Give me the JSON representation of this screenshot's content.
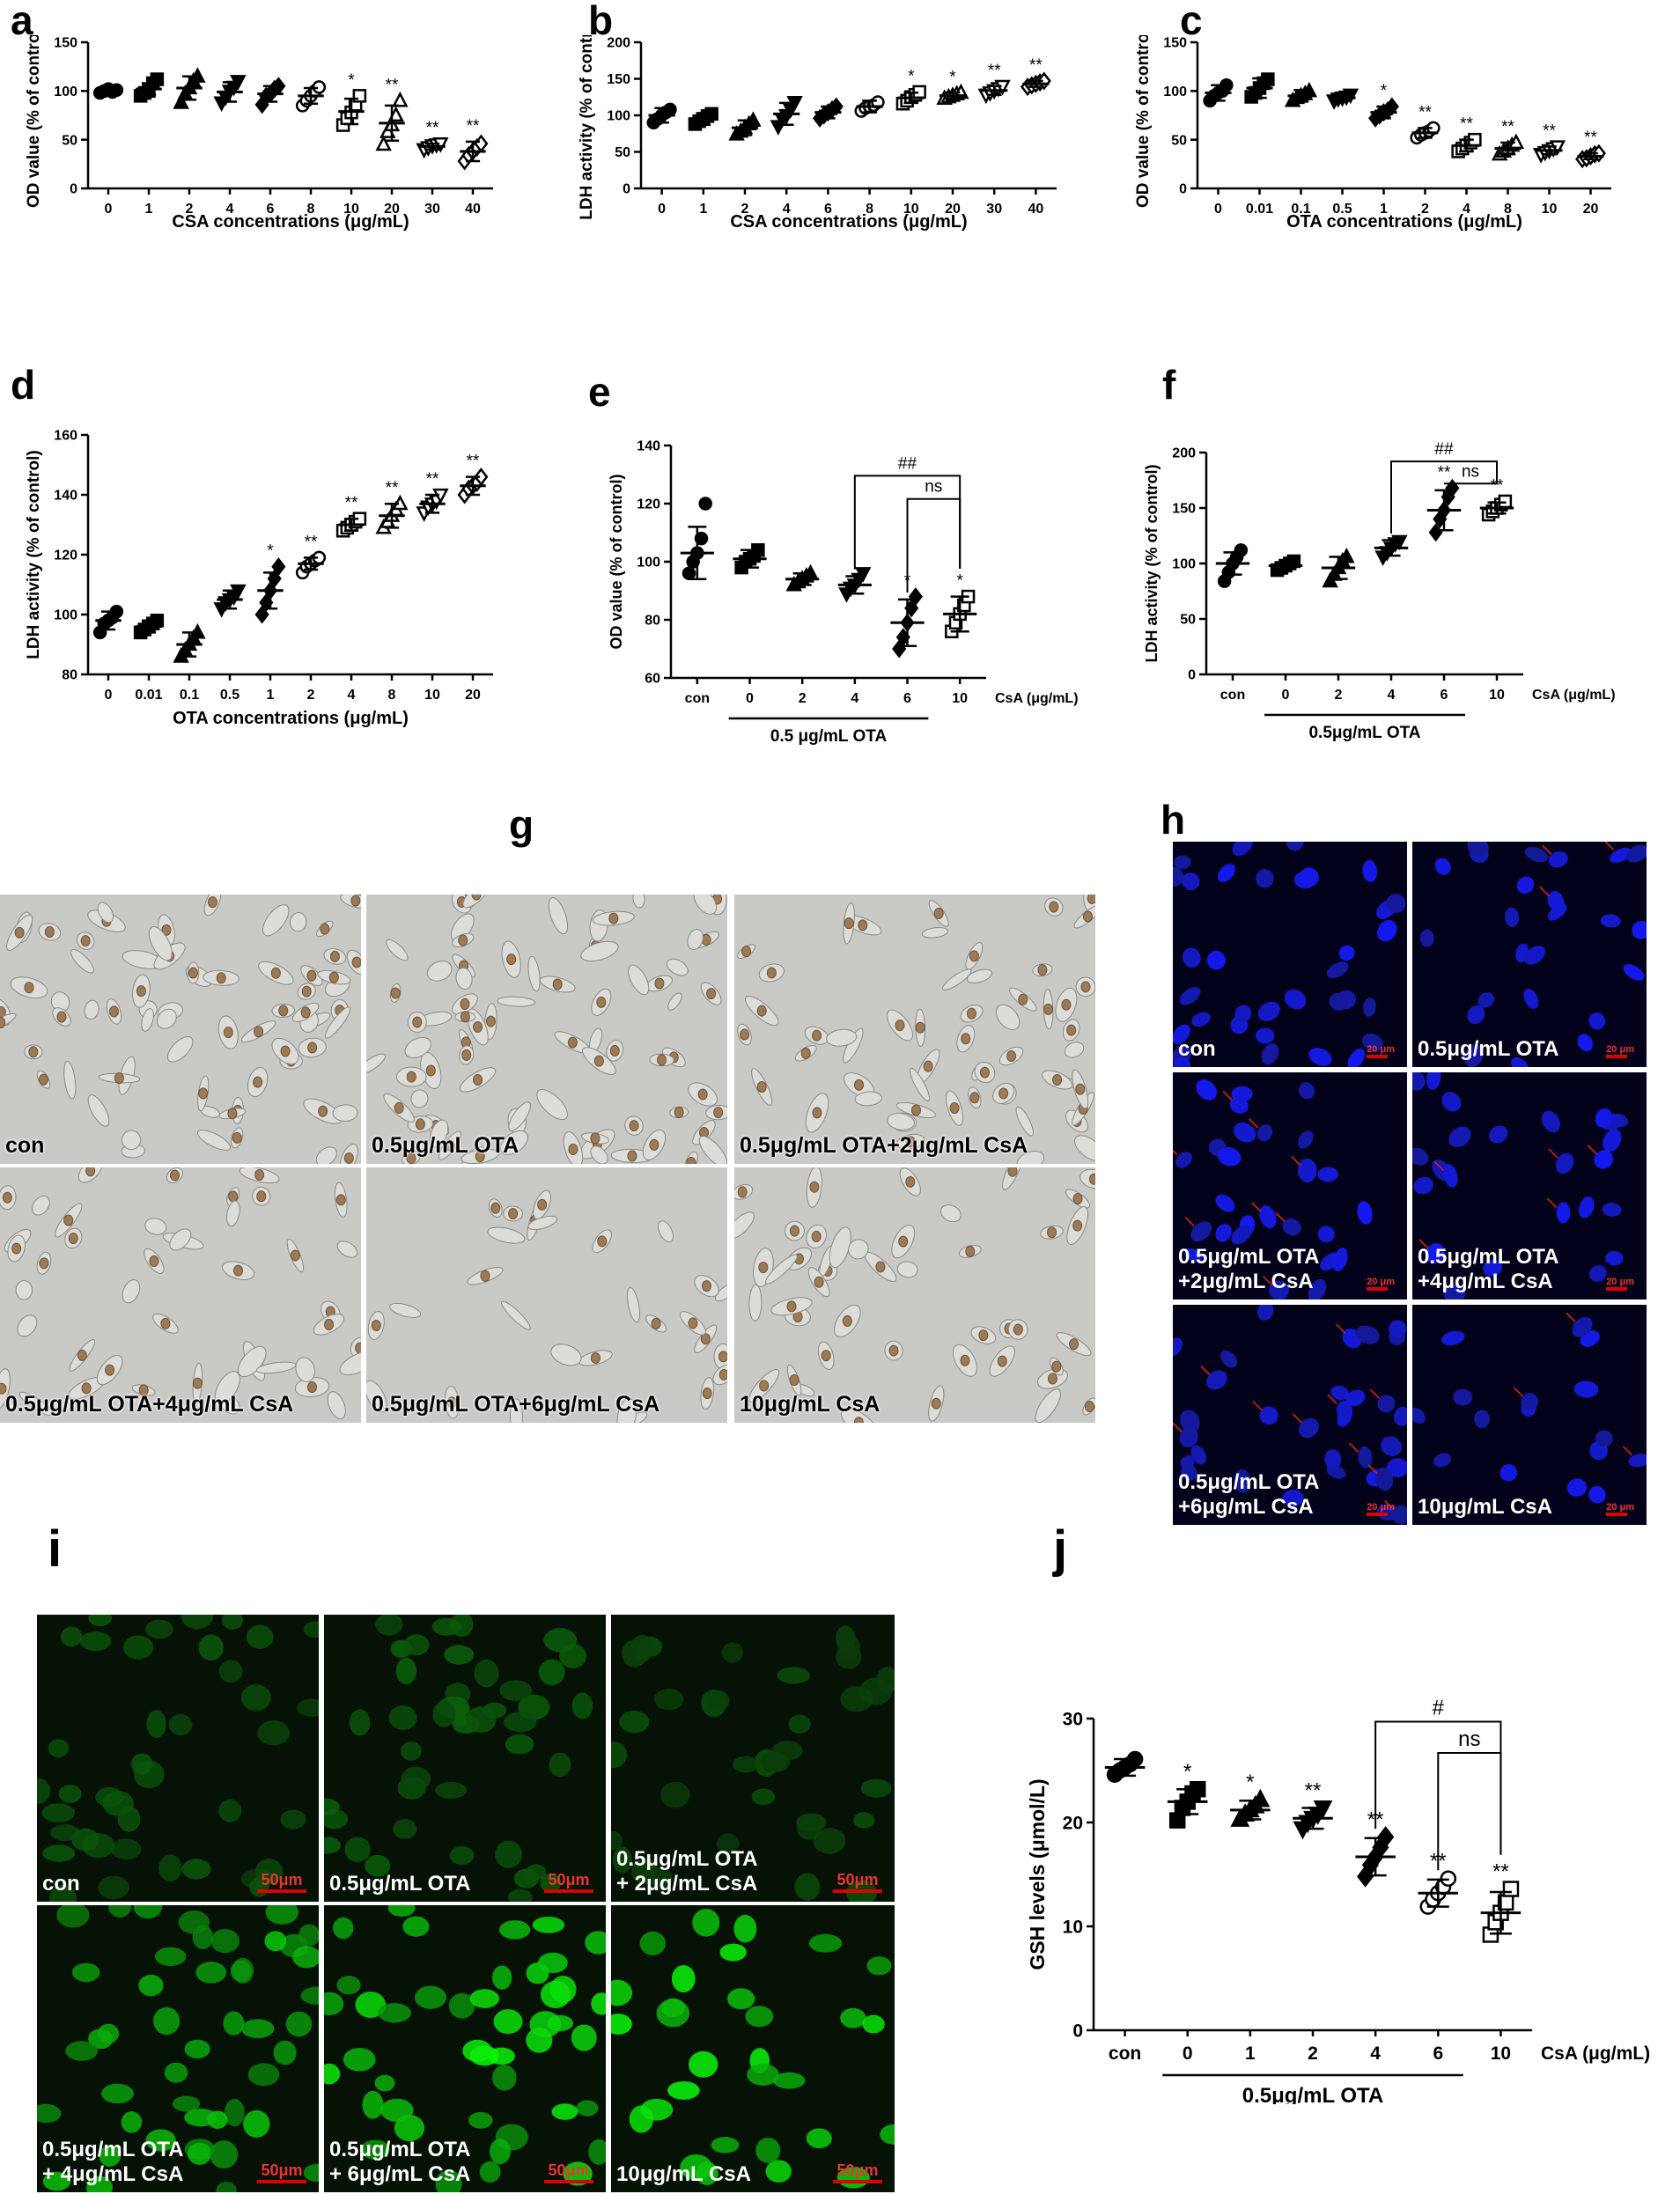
{
  "figure": {
    "panel_letters": [
      "a",
      "b",
      "c",
      "d",
      "e",
      "f",
      "g",
      "h",
      "i",
      "j"
    ]
  },
  "chart_data": [
    {
      "id": "a",
      "type": "scatter",
      "ylabel": "OD value (% of control)",
      "xlabel": "CSA concentrations (μg/mL)",
      "ylim": [
        0,
        150
      ],
      "yticks": [
        0,
        50,
        100,
        150
      ],
      "categories": [
        "0",
        "1",
        "2",
        "4",
        "6",
        "8",
        "10",
        "20",
        "30",
        "40"
      ],
      "means": [
        100,
        102,
        103,
        99,
        97,
        95,
        79,
        67,
        43,
        38
      ],
      "sd": [
        3,
        6,
        12,
        10,
        8,
        8,
        13,
        18,
        3,
        10
      ],
      "markers": [
        "circle-filled",
        "square-filled",
        "triangle-filled",
        "triangle-down-filled",
        "diamond-filled",
        "circle-open",
        "square-open",
        "triangle-open",
        "triangle-down-open",
        "diamond-open"
      ],
      "points": [
        [
          98,
          100,
          102,
          99,
          101
        ],
        [
          95,
          98,
          100,
          108,
          112
        ],
        [
          88,
          97,
          103,
          110,
          115
        ],
        [
          88,
          94,
          100,
          104,
          110
        ],
        [
          86,
          95,
          97,
          102,
          105
        ],
        [
          85,
          90,
          95,
          100,
          104
        ],
        [
          65,
          72,
          78,
          86,
          95
        ],
        [
          45,
          58,
          65,
          75,
          90
        ],
        [
          40,
          42,
          44,
          45,
          46
        ],
        [
          28,
          34,
          38,
          42,
          46
        ]
      ],
      "significance": [
        "",
        "",
        "",
        "",
        "",
        "",
        "*",
        "**",
        "**",
        "**"
      ]
    },
    {
      "id": "b",
      "type": "scatter",
      "ylabel": "LDH activity (% of control)",
      "xlabel": "CSA concentrations (μg/mL)",
      "ylim": [
        0,
        200
      ],
      "yticks": [
        0,
        50,
        100,
        150,
        200
      ],
      "categories": [
        "0",
        "1",
        "2",
        "4",
        "6",
        "8",
        "10",
        "20",
        "30",
        "40"
      ],
      "means": [
        100,
        95,
        83,
        102,
        104,
        112,
        124,
        127,
        134,
        143
      ],
      "sd": [
        10,
        8,
        10,
        15,
        8,
        8,
        7,
        4,
        6,
        4
      ],
      "markers": [
        "circle-filled",
        "square-filled",
        "triangle-filled",
        "triangle-down-filled",
        "diamond-filled",
        "circle-open",
        "square-open",
        "triangle-open",
        "triangle-down-open",
        "diamond-open"
      ],
      "points": [
        [
          90,
          95,
          100,
          104,
          108
        ],
        [
          88,
          92,
          95,
          99,
          102
        ],
        [
          74,
          78,
          83,
          88,
          93
        ],
        [
          85,
          95,
          100,
          108,
          118
        ],
        [
          96,
          100,
          104,
          108,
          112
        ],
        [
          106,
          110,
          112,
          114,
          118
        ],
        [
          116,
          120,
          125,
          128,
          132
        ],
        [
          123,
          125,
          127,
          129,
          131
        ],
        [
          128,
          131,
          134,
          137,
          140
        ],
        [
          139,
          141,
          143,
          145,
          147
        ]
      ],
      "significance": [
        "",
        "",
        "",
        "",
        "",
        "",
        "*",
        "*",
        "**",
        "**"
      ]
    },
    {
      "id": "c",
      "type": "scatter",
      "ylabel": "OD value (% of control)",
      "xlabel": "OTA concentrations (μg/mL)",
      "ylim": [
        0,
        150
      ],
      "yticks": [
        0,
        50,
        100,
        150
      ],
      "categories": [
        "0",
        "0.01",
        "0.1",
        "0.5",
        "1",
        "2",
        "4",
        "8",
        "10",
        "20"
      ],
      "means": [
        98,
        103,
        95,
        93,
        78,
        57,
        44,
        41,
        39,
        33
      ],
      "sd": [
        8,
        10,
        6,
        3,
        6,
        5,
        6,
        6,
        4,
        3
      ],
      "markers": [
        "circle-filled",
        "square-filled",
        "triangle-filled",
        "triangle-down-filled",
        "diamond-filled",
        "circle-open",
        "square-open",
        "triangle-open",
        "triangle-down-open",
        "diamond-open"
      ],
      "points": [
        [
          90,
          95,
          98,
          100,
          106
        ],
        [
          94,
          98,
          103,
          108,
          112
        ],
        [
          90,
          93,
          95,
          97,
          100
        ],
        [
          90,
          92,
          93,
          94,
          96
        ],
        [
          72,
          75,
          78,
          80,
          84
        ],
        [
          52,
          55,
          57,
          59,
          62
        ],
        [
          38,
          41,
          44,
          47,
          50
        ],
        [
          35,
          38,
          41,
          44,
          47
        ],
        [
          35,
          37,
          39,
          41,
          43
        ],
        [
          30,
          31,
          33,
          35,
          36
        ]
      ],
      "significance": [
        "",
        "",
        "",
        "",
        "*",
        "**",
        "**",
        "**",
        "**",
        "**"
      ]
    },
    {
      "id": "d",
      "type": "scatter",
      "ylabel": "LDH activity (% of control)",
      "xlabel": "OTA concentrations (μg/mL)",
      "ylim": [
        80,
        160
      ],
      "yticks": [
        80,
        100,
        120,
        140,
        160
      ],
      "categories": [
        "0",
        "0.01",
        "0.1",
        "0.5",
        "1",
        "2",
        "4",
        "8",
        "10",
        "20"
      ],
      "means": [
        98,
        96,
        90,
        105,
        108,
        117,
        130,
        133,
        137,
        143
      ],
      "sd": [
        3,
        2,
        4,
        3,
        6,
        2,
        2,
        4,
        3,
        3
      ],
      "markers": [
        "circle-filled",
        "square-filled",
        "triangle-filled",
        "triangle-down-filled",
        "diamond-filled",
        "circle-open",
        "square-open",
        "triangle-open",
        "triangle-down-open",
        "diamond-open"
      ],
      "points": [
        [
          94,
          97,
          98,
          99,
          101
        ],
        [
          94,
          95,
          96,
          97,
          98
        ],
        [
          86,
          88,
          90,
          92,
          94
        ],
        [
          102,
          104,
          105,
          106,
          108
        ],
        [
          100,
          104,
          108,
          112,
          116
        ],
        [
          114,
          116,
          117,
          118,
          119
        ],
        [
          128,
          129,
          130,
          131,
          132
        ],
        [
          129,
          131,
          133,
          135,
          137
        ],
        [
          134,
          136,
          137,
          138,
          140
        ],
        [
          140,
          142,
          143,
          144,
          146
        ]
      ],
      "significance": [
        "",
        "",
        "",
        "",
        "*",
        "**",
        "**",
        "**",
        "**",
        "**"
      ]
    },
    {
      "id": "e",
      "type": "scatter",
      "ylabel": "OD value (% of control)",
      "ylim": [
        60,
        140
      ],
      "yticks": [
        60,
        80,
        100,
        120,
        140
      ],
      "categories": [
        "con",
        "0",
        "2",
        "4",
        "6",
        "10"
      ],
      "category_unit": "CsA (μg/mL)",
      "group_label": "0.5 μg/mL OTA",
      "means": [
        103,
        101,
        94,
        92,
        79,
        82
      ],
      "sd": [
        9,
        3,
        2,
        3,
        8,
        6
      ],
      "markers": [
        "circle-filled",
        "square-filled",
        "triangle-filled",
        "triangle-down-filled",
        "diamond-filled",
        "square-open"
      ],
      "points": [
        [
          96,
          100,
          103,
          108,
          120
        ],
        [
          98,
          100,
          101,
          102,
          104
        ],
        [
          92,
          93,
          94,
          95,
          96
        ],
        [
          89,
          91,
          92,
          94,
          96
        ],
        [
          70,
          74,
          79,
          84,
          88
        ],
        [
          76,
          79,
          82,
          85,
          88
        ]
      ],
      "significance": [
        "",
        "",
        "",
        "",
        "*",
        "*"
      ],
      "brackets": [
        {
          "from": "4",
          "to": "10",
          "label": "##"
        },
        {
          "from": "6",
          "to": "10",
          "label": "ns"
        }
      ]
    },
    {
      "id": "f",
      "type": "scatter",
      "ylabel": "LDH activity (% of control)",
      "ylim": [
        0,
        200
      ],
      "yticks": [
        0,
        50,
        100,
        150,
        200
      ],
      "categories": [
        "con",
        "0",
        "2",
        "4",
        "6",
        "10"
      ],
      "category_unit": "CsA (μg/mL)",
      "group_label": "0.5μg/mL OTA",
      "means": [
        100,
        98,
        96,
        114,
        148,
        150
      ],
      "sd": [
        10,
        3,
        10,
        7,
        18,
        5
      ],
      "markers": [
        "circle-filled",
        "square-filled",
        "triangle-filled",
        "triangle-down-filled",
        "diamond-filled",
        "square-open"
      ],
      "points": [
        [
          84,
          92,
          100,
          106,
          112
        ],
        [
          94,
          96,
          98,
          100,
          102
        ],
        [
          84,
          90,
          96,
          102,
          106
        ],
        [
          106,
          110,
          114,
          118,
          120
        ],
        [
          128,
          140,
          148,
          160,
          168
        ],
        [
          144,
          147,
          150,
          153,
          156
        ]
      ],
      "significance": [
        "",
        "",
        "",
        "",
        "**",
        "**"
      ],
      "brackets": [
        {
          "from": "4",
          "to": "10",
          "label": "##"
        },
        {
          "from": "6",
          "to": "10",
          "label": "ns"
        }
      ]
    },
    {
      "id": "j",
      "type": "scatter",
      "ylabel": "GSH levels (μmol/L)",
      "ylim": [
        0,
        30
      ],
      "yticks": [
        0,
        10,
        20,
        30
      ],
      "categories": [
        "con",
        "0",
        "1",
        "2",
        "4",
        "6",
        "10"
      ],
      "category_unit": "CsA (μg/mL)",
      "group_label": "0.5μg/mL OTA",
      "means": [
        25.3,
        22,
        21.2,
        20.4,
        16.7,
        13.2,
        11.3
      ],
      "sd": [
        0.8,
        1.2,
        0.9,
        1.0,
        1.8,
        1.3,
        2.0
      ],
      "markers": [
        "circle-filled",
        "square-filled",
        "triangle-filled",
        "triangle-down-filled",
        "diamond-filled",
        "circle-open",
        "square-open"
      ],
      "points": [
        [
          24.6,
          25,
          25.3,
          25.6,
          26.1
        ],
        [
          20.2,
          21.4,
          22,
          22.8,
          23.2
        ],
        [
          20.3,
          20.8,
          21.2,
          21.6,
          22.2
        ],
        [
          19.4,
          20,
          20.4,
          20.8,
          21.4
        ],
        [
          14.8,
          15.9,
          16.7,
          17.6,
          18.6
        ],
        [
          11.9,
          12.6,
          13.2,
          13.8,
          14.6
        ],
        [
          9.2,
          10.4,
          11.3,
          12.3,
          13.6
        ]
      ],
      "significance": [
        "",
        "*",
        "*",
        "**",
        "**",
        "**",
        "**"
      ],
      "brackets": [
        {
          "from": "4",
          "to": "10",
          "label": "#"
        },
        {
          "from": "6",
          "to": "10",
          "label": "ns"
        }
      ]
    }
  ],
  "micrographs": {
    "g": [
      "con",
      "0.5μg/mL OTA",
      "0.5μg/mL OTA+2μg/mL CsA",
      "0.5μg/mL OTA+4μg/mL CsA",
      "0.5μg/mL OTA+6μg/mL CsA",
      "10μg/mL CsA"
    ],
    "h": [
      "con",
      "0.5μg/mL OTA",
      "0.5μg/mL OTA\n+2μg/mL CsA",
      "0.5μg/mL OTA\n+4μg/mL CsA",
      "0.5μg/mL OTA\n+6μg/mL CsA",
      "10μg/mL CsA"
    ],
    "h_scalebar": "20 μm",
    "i": [
      "con",
      "0.5μg/mL OTA",
      "0.5μg/mL OTA\n+ 2μg/mL CsA",
      "0.5μg/mL OTA\n+ 4μg/mL CsA",
      "0.5μg/mL OTA\n+ 6μg/mL CsA",
      "10μg/mL CsA"
    ],
    "i_scalebar": "50μm"
  }
}
